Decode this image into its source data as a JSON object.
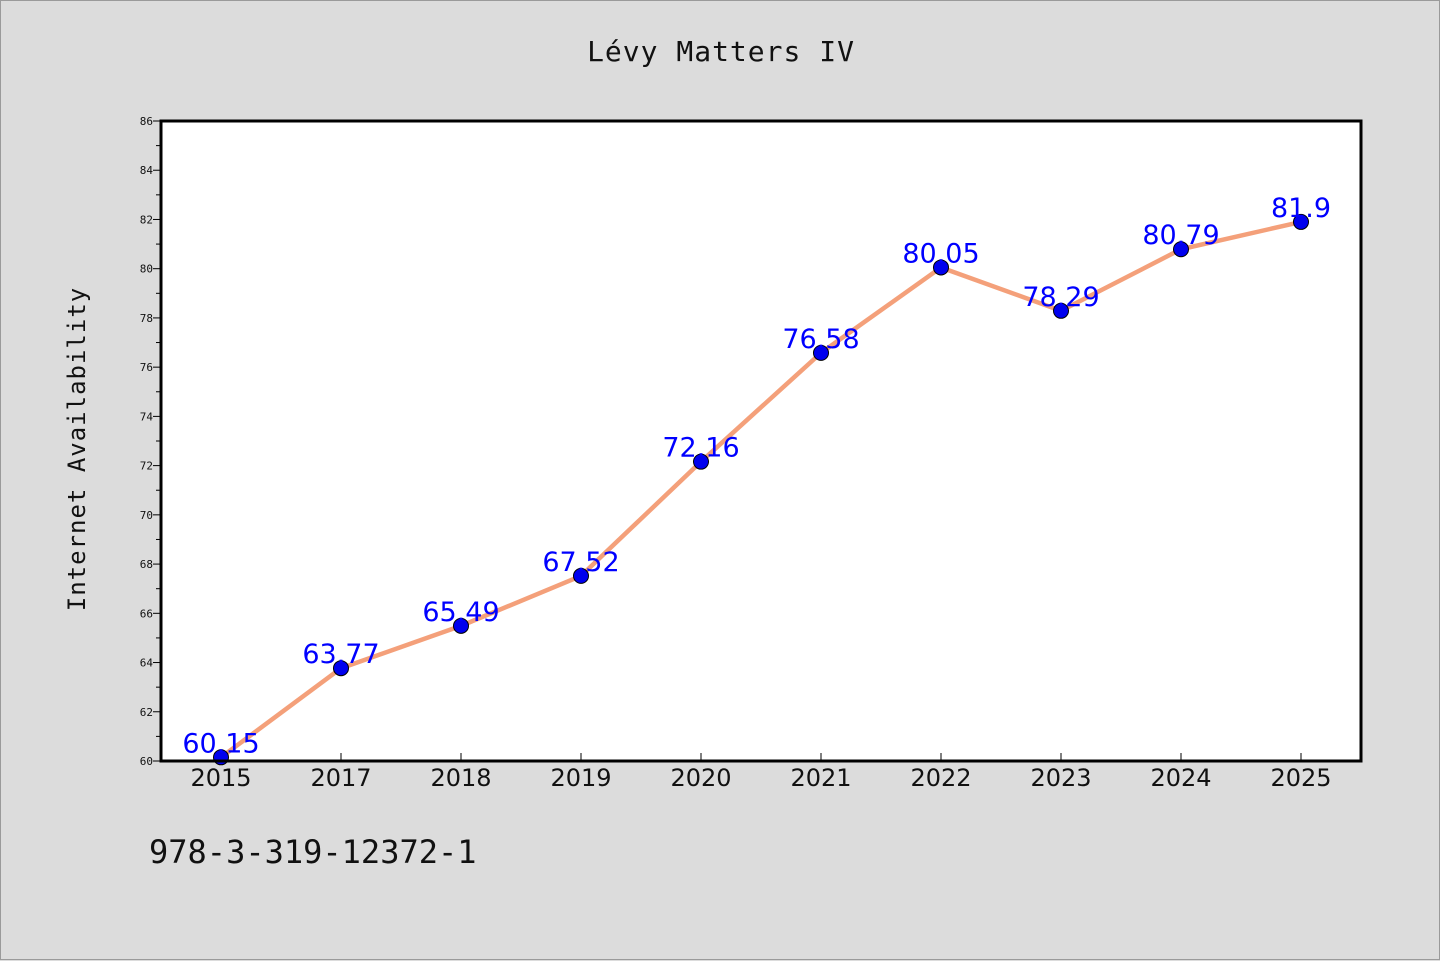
{
  "chart_data": {
    "type": "line",
    "title": "Lévy Matters IV",
    "xlabel": "",
    "ylabel": "Internet Availability",
    "categories": [
      "2015",
      "2017",
      "2018",
      "2019",
      "2020",
      "2021",
      "2022",
      "2023",
      "2024",
      "2025"
    ],
    "series": [
      {
        "values": [
          60.15,
          63.77,
          65.49,
          67.52,
          72.16,
          76.58,
          80.05,
          78.29,
          80.79,
          81.9
        ],
        "labels": [
          "60.15",
          "63.77",
          "65.49",
          "67.52",
          "72.16",
          "76.58",
          "80.05",
          "78.29",
          "80.79",
          "81.9"
        ],
        "line_color": "#f4a07a",
        "marker_color": "#0000ee"
      }
    ],
    "ylim": [
      60,
      86
    ],
    "yticks": [
      "60",
      "62",
      "64",
      "66",
      "68",
      "70",
      "72",
      "74",
      "76",
      "78",
      "80",
      "82",
      "84",
      "86"
    ],
    "grid": false,
    "legend": "none",
    "label_color": "#0000ff"
  },
  "footer": {
    "isbn": "978-3-319-12372-1"
  }
}
